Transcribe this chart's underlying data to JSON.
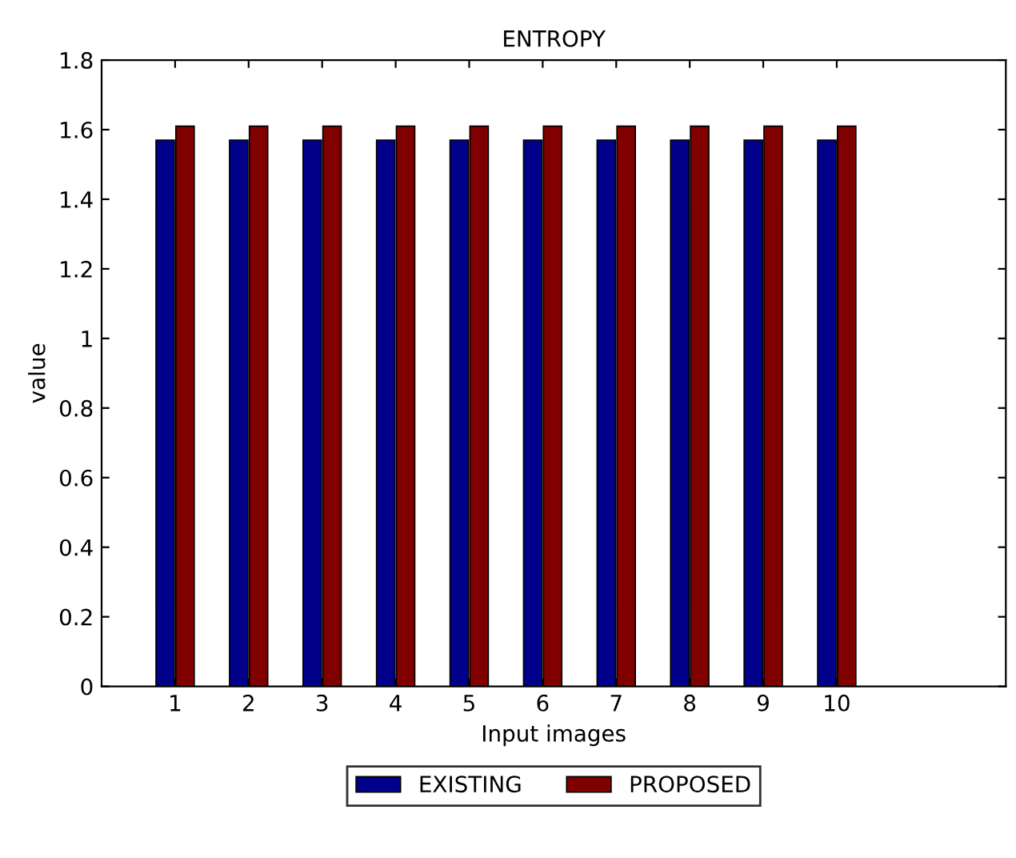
{
  "chart_data": {
    "type": "bar",
    "title": "ENTROPY",
    "xlabel": "Input images",
    "ylabel": "value",
    "x": [
      1,
      2,
      3,
      4,
      5,
      6,
      7,
      8,
      9,
      10
    ],
    "series": [
      {
        "name": "EXISTING",
        "color": "#00008b",
        "values": [
          1.57,
          1.57,
          1.57,
          1.57,
          1.57,
          1.57,
          1.57,
          1.57,
          1.57,
          1.57
        ]
      },
      {
        "name": "PROPOSED",
        "color": "#800000",
        "values": [
          1.61,
          1.61,
          1.61,
          1.61,
          1.61,
          1.61,
          1.61,
          1.61,
          1.61,
          1.61
        ]
      }
    ],
    "xlim": [
      0,
      12.3
    ],
    "xticks": [
      1,
      2,
      3,
      4,
      5,
      6,
      7,
      8,
      9,
      10
    ],
    "ylim": [
      0,
      1.8
    ],
    "yticks": [
      0,
      0.2,
      0.4,
      0.6,
      0.8,
      1,
      1.2,
      1.4,
      1.6,
      1.8
    ],
    "grid": false,
    "legend": "bottom"
  }
}
